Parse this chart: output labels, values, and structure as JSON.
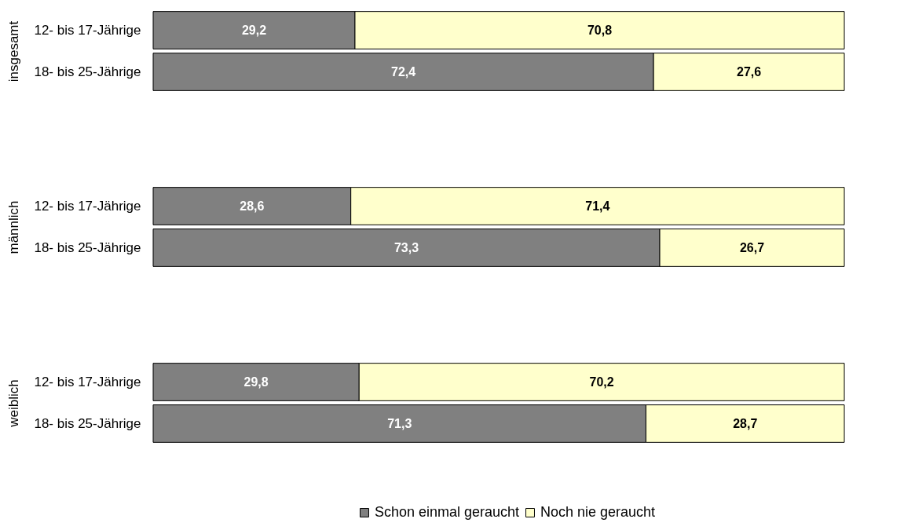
{
  "chart_data": [
    {
      "type": "bar",
      "orientation": "horizontal",
      "stacked": true,
      "ylabel": "insgesamt",
      "categories": [
        "12- bis 17-Jährige",
        "18- bis 25-Jährige"
      ],
      "series": [
        {
          "color": "#808080",
          "values": [
            29.2,
            72.4
          ],
          "value_labels": [
            "29,2",
            "72,4"
          ]
        },
        {
          "color": "#ffffcc",
          "values": [
            70.8,
            27.6
          ],
          "value_labels": [
            "70,8",
            "27,6"
          ]
        }
      ]
    },
    {
      "type": "bar",
      "orientation": "horizontal",
      "stacked": true,
      "ylabel": "männlich",
      "categories": [
        "12- bis 17-Jährige",
        "18- bis 25-Jährige"
      ],
      "series": [
        {
          "color": "#808080",
          "values": [
            28.6,
            73.3
          ],
          "value_labels": [
            "28,6",
            "73,3"
          ]
        },
        {
          "color": "#ffffcc",
          "values": [
            71.4,
            26.7
          ],
          "value_labels": [
            "71,4",
            "26,7"
          ]
        }
      ]
    },
    {
      "type": "bar",
      "orientation": "horizontal",
      "stacked": true,
      "ylabel": "weiblich",
      "categories": [
        "12- bis 17-Jährige",
        "18- bis 25-Jährige"
      ],
      "legend": "bottom",
      "series": [
        {
          "name": "Schon einmal geraucht",
          "color": "#808080",
          "values": [
            29.8,
            71.3
          ],
          "value_labels": [
            "29,8",
            "71,3"
          ]
        },
        {
          "name": "Noch nie geraucht",
          "color": "#ffffcc",
          "values": [
            70.2,
            28.7
          ],
          "value_labels": [
            "70,2",
            "28,7"
          ]
        }
      ]
    }
  ]
}
